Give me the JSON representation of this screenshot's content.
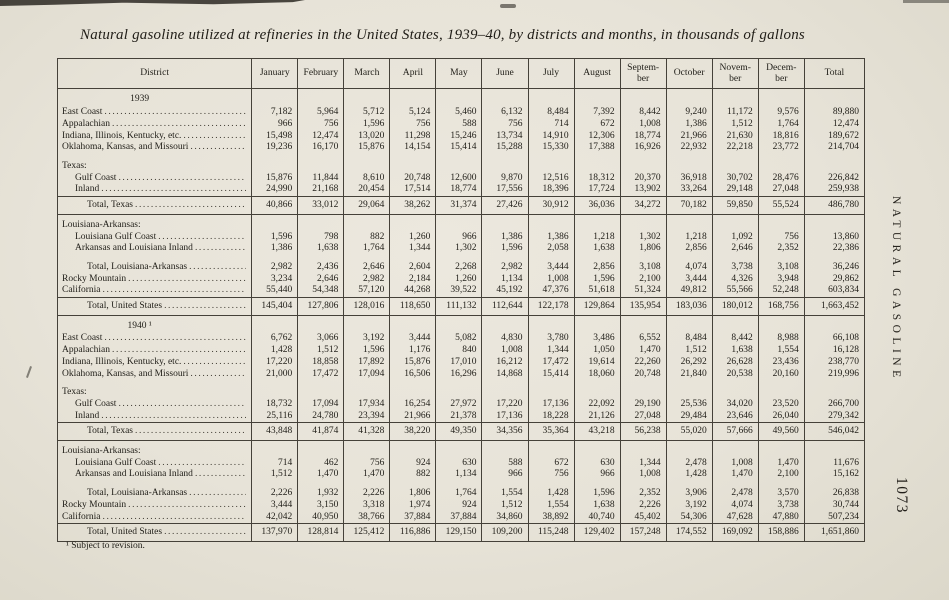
{
  "page": {
    "title": "Natural gasoline utilized at refineries in the United States, 1939–40, by districts and months, in thousands of gallons",
    "footnote": "¹ Subject to revision.",
    "side_label": "NATURAL GASOLINE",
    "page_number": "1073",
    "paper_color": "#e7e3d8",
    "ink_color": "#23211b"
  },
  "table": {
    "columns": [
      "District",
      "January",
      "February",
      "March",
      "April",
      "May",
      "June",
      "July",
      "August",
      "Septem-\nber",
      "October",
      "Novem-\nber",
      "Decem-\nber",
      "Total"
    ],
    "rows": [
      {
        "type": "year",
        "label": "1939",
        "values": null
      },
      {
        "type": "data",
        "indent": 0,
        "label": "East Coast",
        "values": [
          "7,182",
          "5,964",
          "5,712",
          "5,124",
          "5,460",
          "6,132",
          "8,484",
          "7,392",
          "8,442",
          "9,240",
          "11,172",
          "9,576",
          "89,880"
        ]
      },
      {
        "type": "data",
        "indent": 0,
        "label": "Appalachian",
        "values": [
          "966",
          "756",
          "1,596",
          "756",
          "588",
          "756",
          "714",
          "672",
          "1,008",
          "1,386",
          "1,512",
          "1,764",
          "12,474"
        ]
      },
      {
        "type": "data",
        "indent": 0,
        "label": "Indiana, Illinois, Kentucky, etc.",
        "values": [
          "15,498",
          "12,474",
          "13,020",
          "11,298",
          "15,246",
          "13,734",
          "14,910",
          "12,306",
          "18,774",
          "21,966",
          "21,630",
          "18,816",
          "189,672"
        ]
      },
      {
        "type": "data",
        "indent": 0,
        "label": "Oklahoma, Kansas, and Missouri",
        "values": [
          "19,236",
          "16,170",
          "15,876",
          "14,154",
          "15,414",
          "15,288",
          "15,330",
          "17,388",
          "16,926",
          "22,932",
          "22,218",
          "23,772",
          "214,704"
        ]
      },
      {
        "type": "group",
        "gap": true,
        "indent": 0,
        "label": "Texas:",
        "values": null
      },
      {
        "type": "data",
        "indent": 1,
        "label": "Gulf Coast",
        "values": [
          "15,876",
          "11,844",
          "8,610",
          "20,748",
          "12,600",
          "9,870",
          "12,516",
          "18,312",
          "20,370",
          "36,918",
          "30,702",
          "28,476",
          "226,842"
        ]
      },
      {
        "type": "data",
        "indent": 1,
        "label": "Inland",
        "values": [
          "24,990",
          "21,168",
          "20,454",
          "17,514",
          "18,774",
          "17,556",
          "18,396",
          "17,724",
          "13,902",
          "33,264",
          "29,148",
          "27,048",
          "259,938"
        ]
      },
      {
        "type": "total",
        "indent": 2,
        "label": "Total, Texas",
        "values": [
          "40,866",
          "33,012",
          "29,064",
          "38,262",
          "31,374",
          "27,426",
          "30,912",
          "36,036",
          "34,272",
          "70,182",
          "59,850",
          "55,524",
          "486,780"
        ]
      },
      {
        "type": "group",
        "indent": 0,
        "label": "Louisiana-Arkansas:",
        "values": null
      },
      {
        "type": "data",
        "indent": 1,
        "label": "Louisiana Gulf Coast",
        "values": [
          "1,596",
          "798",
          "882",
          "1,260",
          "966",
          "1,386",
          "1,386",
          "1,218",
          "1,302",
          "1,218",
          "1,092",
          "756",
          "13,860"
        ]
      },
      {
        "type": "data",
        "indent": 1,
        "label": "Arkansas and Louisiana Inland",
        "values": [
          "1,386",
          "1,638",
          "1,764",
          "1,344",
          "1,302",
          "1,596",
          "2,058",
          "1,638",
          "1,806",
          "2,856",
          "2,646",
          "2,352",
          "22,386"
        ]
      },
      {
        "type": "subtotal",
        "gap": true,
        "indent": 2,
        "label": "Total, Louisiana-Arkansas",
        "values": [
          "2,982",
          "2,436",
          "2,646",
          "2,604",
          "2,268",
          "2,982",
          "3,444",
          "2,856",
          "3,108",
          "4,074",
          "3,738",
          "3,108",
          "36,246"
        ]
      },
      {
        "type": "data",
        "indent": 0,
        "label": "Rocky Mountain",
        "values": [
          "3,234",
          "2,646",
          "2,982",
          "2,184",
          "1,260",
          "1,134",
          "1,008",
          "1,596",
          "2,100",
          "3,444",
          "4,326",
          "3,948",
          "29,862"
        ]
      },
      {
        "type": "data",
        "indent": 0,
        "label": "California",
        "values": [
          "55,440",
          "54,348",
          "57,120",
          "44,268",
          "39,522",
          "45,192",
          "47,376",
          "51,618",
          "51,324",
          "49,812",
          "55,566",
          "52,248",
          "603,834"
        ]
      },
      {
        "type": "total",
        "indent": 2,
        "label": "Total, United States",
        "values": [
          "145,404",
          "127,806",
          "128,016",
          "118,650",
          "111,132",
          "112,644",
          "122,178",
          "129,864",
          "135,954",
          "183,036",
          "180,012",
          "168,756",
          "1,663,452"
        ]
      },
      {
        "type": "year",
        "gap": true,
        "label": "1940 ¹",
        "values": null
      },
      {
        "type": "data",
        "indent": 0,
        "label": "East Coast",
        "values": [
          "6,762",
          "3,066",
          "3,192",
          "3,444",
          "5,082",
          "4,830",
          "3,780",
          "3,486",
          "6,552",
          "8,484",
          "8,442",
          "8,988",
          "66,108"
        ]
      },
      {
        "type": "data",
        "indent": 0,
        "label": "Appalachian",
        "values": [
          "1,428",
          "1,512",
          "1,596",
          "1,176",
          "840",
          "1,008",
          "1,344",
          "1,050",
          "1,470",
          "1,512",
          "1,638",
          "1,554",
          "16,128"
        ]
      },
      {
        "type": "data",
        "indent": 0,
        "label": "Indiana, Illinois, Kentucky, etc.",
        "values": [
          "17,220",
          "18,858",
          "17,892",
          "15,876",
          "17,010",
          "16,212",
          "17,472",
          "19,614",
          "22,260",
          "26,292",
          "26,628",
          "23,436",
          "238,770"
        ]
      },
      {
        "type": "data",
        "indent": 0,
        "label": "Oklahoma, Kansas, and Missouri",
        "values": [
          "21,000",
          "17,472",
          "17,094",
          "16,506",
          "16,296",
          "14,868",
          "15,414",
          "18,060",
          "20,748",
          "21,840",
          "20,538",
          "20,160",
          "219,996"
        ]
      },
      {
        "type": "group",
        "gap": true,
        "indent": 0,
        "label": "Texas:",
        "values": null
      },
      {
        "type": "data",
        "indent": 1,
        "label": "Gulf Coast",
        "values": [
          "18,732",
          "17,094",
          "17,934",
          "16,254",
          "27,972",
          "17,220",
          "17,136",
          "22,092",
          "29,190",
          "25,536",
          "34,020",
          "23,520",
          "266,700"
        ]
      },
      {
        "type": "data",
        "indent": 1,
        "label": "Inland",
        "values": [
          "25,116",
          "24,780",
          "23,394",
          "21,966",
          "21,378",
          "17,136",
          "18,228",
          "21,126",
          "27,048",
          "29,484",
          "23,646",
          "26,040",
          "279,342"
        ]
      },
      {
        "type": "total",
        "indent": 2,
        "label": "Total, Texas",
        "values": [
          "43,848",
          "41,874",
          "41,328",
          "38,220",
          "49,350",
          "34,356",
          "35,364",
          "43,218",
          "56,238",
          "55,020",
          "57,666",
          "49,560",
          "546,042"
        ]
      },
      {
        "type": "group",
        "indent": 0,
        "label": "Louisiana-Arkansas:",
        "values": null
      },
      {
        "type": "data",
        "indent": 1,
        "label": "Louisiana Gulf Coast",
        "values": [
          "714",
          "462",
          "756",
          "924",
          "630",
          "588",
          "672",
          "630",
          "1,344",
          "2,478",
          "1,008",
          "1,470",
          "11,676"
        ]
      },
      {
        "type": "data",
        "indent": 1,
        "label": "Arkansas and Louisiana Inland",
        "values": [
          "1,512",
          "1,470",
          "1,470",
          "882",
          "1,134",
          "966",
          "756",
          "966",
          "1,008",
          "1,428",
          "1,470",
          "2,100",
          "15,162"
        ]
      },
      {
        "type": "subtotal",
        "gap": true,
        "indent": 2,
        "label": "Total, Louisiana-Arkansas",
        "values": [
          "2,226",
          "1,932",
          "2,226",
          "1,806",
          "1,764",
          "1,554",
          "1,428",
          "1,596",
          "2,352",
          "3,906",
          "2,478",
          "3,570",
          "26,838"
        ]
      },
      {
        "type": "data",
        "indent": 0,
        "label": "Rocky Mountain",
        "values": [
          "3,444",
          "3,150",
          "3,318",
          "1,974",
          "924",
          "1,512",
          "1,554",
          "1,638",
          "2,226",
          "3,192",
          "4,074",
          "3,738",
          "30,744"
        ]
      },
      {
        "type": "data",
        "indent": 0,
        "label": "California",
        "values": [
          "42,042",
          "40,950",
          "38,766",
          "37,884",
          "37,884",
          "34,860",
          "38,892",
          "40,740",
          "45,402",
          "54,306",
          "47,628",
          "47,880",
          "507,234"
        ]
      },
      {
        "type": "total",
        "indent": 2,
        "label": "Total, United States",
        "values": [
          "137,970",
          "128,814",
          "125,412",
          "116,886",
          "129,150",
          "109,200",
          "115,248",
          "129,402",
          "157,248",
          "174,552",
          "169,092",
          "158,886",
          "1,651,860"
        ]
      }
    ]
  }
}
